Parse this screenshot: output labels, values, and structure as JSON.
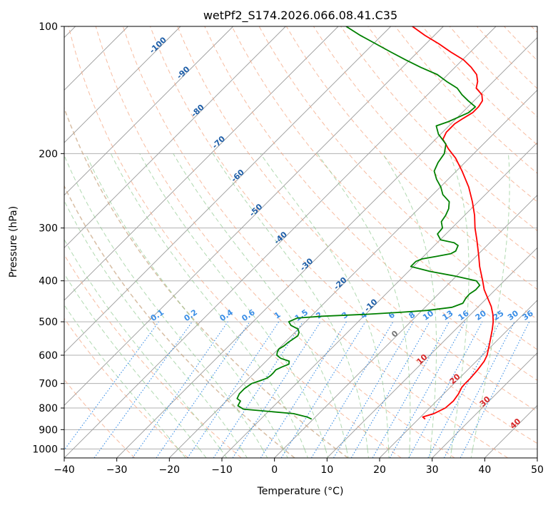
{
  "chart_data": {
    "type": "line",
    "title": "wetPf2_S174.2026.066.08.41.C35",
    "xlabel": "Temperature (°C)",
    "ylabel": "Pressure (hPa)",
    "xlim": [
      -40,
      50
    ],
    "ylim": [
      1050,
      100
    ],
    "y_scale": "log",
    "x_ticks": [
      -40,
      -30,
      -20,
      -10,
      0,
      10,
      20,
      30,
      40,
      50
    ],
    "y_ticks": [
      100,
      200,
      300,
      400,
      500,
      600,
      700,
      800,
      900,
      1000
    ],
    "grid": true,
    "series": [
      {
        "color": "#ff0000",
        "pressure": [
          850,
          840,
          825,
          800,
          770,
          740,
          715,
          700,
          680,
          650,
          620,
          600,
          560,
          520,
          500,
          480,
          460,
          440,
          420,
          400,
          370,
          350,
          320,
          300,
          280,
          260,
          240,
          220,
          205,
          195,
          185,
          178,
          170,
          165,
          160,
          155,
          150,
          145,
          140,
          135,
          130,
          125,
          120,
          115,
          110,
          105,
          100
        ],
        "values": [
          21.3,
          20.4,
          21.9,
          23,
          23.2,
          22.8,
          22.2,
          22.1,
          22.1,
          21.9,
          21.5,
          20.9,
          19,
          16.9,
          15.7,
          14.2,
          12.4,
          10.2,
          7.9,
          5.9,
          2.6,
          0.5,
          -3,
          -5.6,
          -8.1,
          -11.1,
          -14.6,
          -18.9,
          -22.6,
          -25.7,
          -28.6,
          -29.3,
          -29.3,
          -28.7,
          -28,
          -28,
          -28.4,
          -29.7,
          -32,
          -33,
          -34.5,
          -36.9,
          -39.8,
          -43.7,
          -47.5,
          -51.8,
          -55.9
        ]
      },
      {
        "color": "#008000",
        "pressure": [
          850,
          840,
          825,
          805,
          790,
          770,
          760,
          740,
          720,
          705,
          700,
          690,
          680,
          670,
          660,
          650,
          640,
          630,
          620,
          610,
          600,
          590,
          580,
          570,
          560,
          550,
          540,
          530,
          520,
          510,
          500,
          490,
          485,
          480,
          475,
          470,
          462,
          452,
          440,
          430,
          420,
          410,
          400,
          390,
          380,
          370,
          360,
          355,
          350,
          345,
          340,
          330,
          325,
          320,
          310,
          300,
          290,
          280,
          270,
          260,
          250,
          240,
          230,
          220,
          210,
          200,
          190,
          180,
          172,
          168,
          160,
          155,
          150,
          145,
          140,
          135,
          130,
          125,
          120,
          115,
          110,
          105,
          100
        ],
        "values": [
          -0.3,
          -1.6,
          -4.8,
          -15.2,
          -16.9,
          -17.3,
          -18.4,
          -18.9,
          -18.9,
          -18.6,
          -18.5,
          -17.5,
          -16.6,
          -16.4,
          -16.4,
          -16.5,
          -15.9,
          -15.1,
          -15.6,
          -17.8,
          -19.1,
          -19.6,
          -19.9,
          -19.5,
          -19.4,
          -19.1,
          -18.8,
          -19.2,
          -20.1,
          -22.1,
          -23.2,
          -22.3,
          -17.8,
          -9.8,
          -3.8,
          1,
          5.1,
          6.4,
          6,
          5.9,
          6.3,
          6.2,
          4.7,
          -0.1,
          -5.9,
          -10.5,
          -10.5,
          -9.8,
          -7.4,
          -5.3,
          -4.9,
          -5.5,
          -6.8,
          -9.9,
          -11.6,
          -11.8,
          -13.2,
          -13.6,
          -14.3,
          -15.5,
          -18.1,
          -19.9,
          -22.2,
          -24.2,
          -25.1,
          -25.6,
          -27.1,
          -30.4,
          -32.4,
          -30.9,
          -28.8,
          -28.6,
          -31.1,
          -33.5,
          -35.6,
          -38.9,
          -42,
          -46.5,
          -50.8,
          -55.1,
          -59.5,
          -64.1,
          -68.5
        ]
      }
    ],
    "isotherm_labels": [
      "-100",
      "-90",
      "-80",
      "-70",
      "-60",
      "-50",
      "-40",
      "-30",
      "-20",
      "-10",
      "0",
      "10",
      "20",
      "30",
      "40"
    ],
    "mixing_ratio_labels": [
      "0.1",
      "0.2",
      "0.4",
      "0.6",
      "1",
      "1.5",
      "2",
      "3",
      "4",
      "6",
      "8",
      "10",
      "13",
      "16",
      "20",
      "25",
      "30",
      "36"
    ]
  }
}
